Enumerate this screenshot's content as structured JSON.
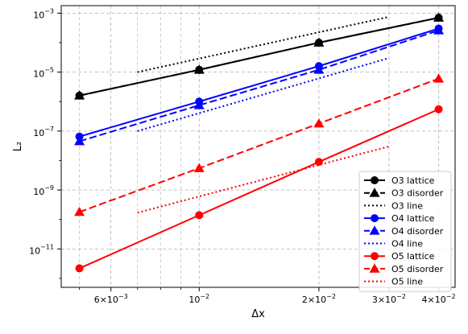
{
  "chart_data": {
    "type": "line",
    "title": "",
    "xlabel": "Δx",
    "ylabel": "L₂",
    "x_scale": "log",
    "y_scale": "log",
    "xlim": [
      0.0045,
      0.044
    ],
    "ylim": [
      5e-13,
      0.0018
    ],
    "grid": true,
    "legend_position": "lower right",
    "x_ticks": [
      {
        "value": 0.006,
        "mant": "6",
        "exp": "−3"
      },
      {
        "value": 0.01,
        "mant": "",
        "exp": "−2"
      },
      {
        "value": 0.02,
        "mant": "2",
        "exp": "−2"
      },
      {
        "value": 0.03,
        "mant": "3",
        "exp": "−2"
      },
      {
        "value": 0.04,
        "mant": "4",
        "exp": "−2"
      }
    ],
    "y_ticks": [
      {
        "value": 1e-11,
        "exp": "−11"
      },
      {
        "value": 1e-09,
        "exp": "−9"
      },
      {
        "value": 1e-07,
        "exp": "−7"
      },
      {
        "value": 1e-05,
        "exp": "−5"
      },
      {
        "value": 0.001,
        "exp": "−3"
      }
    ],
    "series": [
      {
        "name": "O3 lattice",
        "color": "#000000",
        "dash": "solid",
        "marker": "circle",
        "x": [
          0.005,
          0.01,
          0.02,
          0.04
        ],
        "y": [
          1.6e-06,
          1.2e-05,
          0.0001,
          0.0007
        ]
      },
      {
        "name": "O3 disorder",
        "color": "#000000",
        "dash": "dashed",
        "marker": "triangle",
        "x": [
          0.005,
          0.01,
          0.02,
          0.04
        ],
        "y": [
          1.6e-06,
          1.2e-05,
          0.0001,
          0.0007
        ]
      },
      {
        "name": "O3 line",
        "color": "#000000",
        "dash": "dotted",
        "marker": "none",
        "x": [
          0.007,
          0.03
        ],
        "y": [
          1e-05,
          0.00075
        ]
      },
      {
        "name": "O4 lattice",
        "color": "#0000ff",
        "dash": "solid",
        "marker": "circle",
        "x": [
          0.005,
          0.01,
          0.02,
          0.04
        ],
        "y": [
          6.5e-08,
          1e-06,
          1.6e-05,
          0.0003
        ]
      },
      {
        "name": "O4 disorder",
        "color": "#0000ff",
        "dash": "dashed",
        "marker": "triangle",
        "x": [
          0.005,
          0.01,
          0.02,
          0.04
        ],
        "y": [
          4.5e-08,
          7.5e-07,
          1.2e-05,
          0.00026
        ]
      },
      {
        "name": "O4 line",
        "color": "#0000ff",
        "dash": "dotted",
        "marker": "none",
        "x": [
          0.007,
          0.03
        ],
        "y": [
          1e-07,
          3e-05
        ]
      },
      {
        "name": "O5 lattice",
        "color": "#ff0000",
        "dash": "solid",
        "marker": "circle",
        "x": [
          0.005,
          0.01,
          0.02,
          0.04
        ],
        "y": [
          2.2e-12,
          1.4e-10,
          9e-09,
          5.5e-07
        ]
      },
      {
        "name": "O5 disorder",
        "color": "#ff0000",
        "dash": "dashed",
        "marker": "triangle",
        "x": [
          0.005,
          0.01,
          0.02,
          0.04
        ],
        "y": [
          1.8e-10,
          5.5e-09,
          1.8e-07,
          6e-06
        ]
      },
      {
        "name": "O5 line",
        "color": "#ff0000",
        "dash": "dotted",
        "marker": "none",
        "x": [
          0.007,
          0.03
        ],
        "y": [
          1.7e-10,
          3e-08
        ]
      }
    ]
  }
}
